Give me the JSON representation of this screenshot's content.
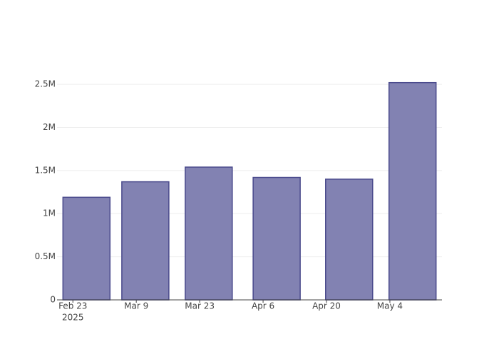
{
  "chart_data": {
    "type": "bar",
    "x": [
      "2025-02-26",
      "2025-03-11",
      "2025-03-25",
      "2025-04-09",
      "2025-04-25",
      "2025-05-09"
    ],
    "values": [
      1190000,
      1370000,
      1540000,
      1420000,
      1400000,
      2520000
    ],
    "color": "#7f7fb0",
    "line_color": "#4a4a8c",
    "xlim": [
      "2025-02-19T12:00:00Z",
      "2025-05-15T12:00:00Z"
    ],
    "xticks": [
      {
        "value": "2025-02-23",
        "label": "Feb 23"
      },
      {
        "value": "2025-03-09",
        "label": "Mar 9"
      },
      {
        "value": "2025-03-23",
        "label": "Mar 23"
      },
      {
        "value": "2025-04-06",
        "label": "Apr 6"
      },
      {
        "value": "2025-04-20",
        "label": "Apr 20"
      },
      {
        "value": "2025-05-04",
        "label": "May 4"
      }
    ],
    "x_year": "2025",
    "ylim": [
      0,
      2650000
    ],
    "yticks": [
      {
        "value": 0,
        "label": "0"
      },
      {
        "value": 500000,
        "label": "0.5M"
      },
      {
        "value": 1000000,
        "label": "1M"
      },
      {
        "value": 1500000,
        "label": "1.5M"
      },
      {
        "value": 2000000,
        "label": "2M"
      },
      {
        "value": 2500000,
        "label": "2.5M"
      }
    ],
    "grid": true
  }
}
